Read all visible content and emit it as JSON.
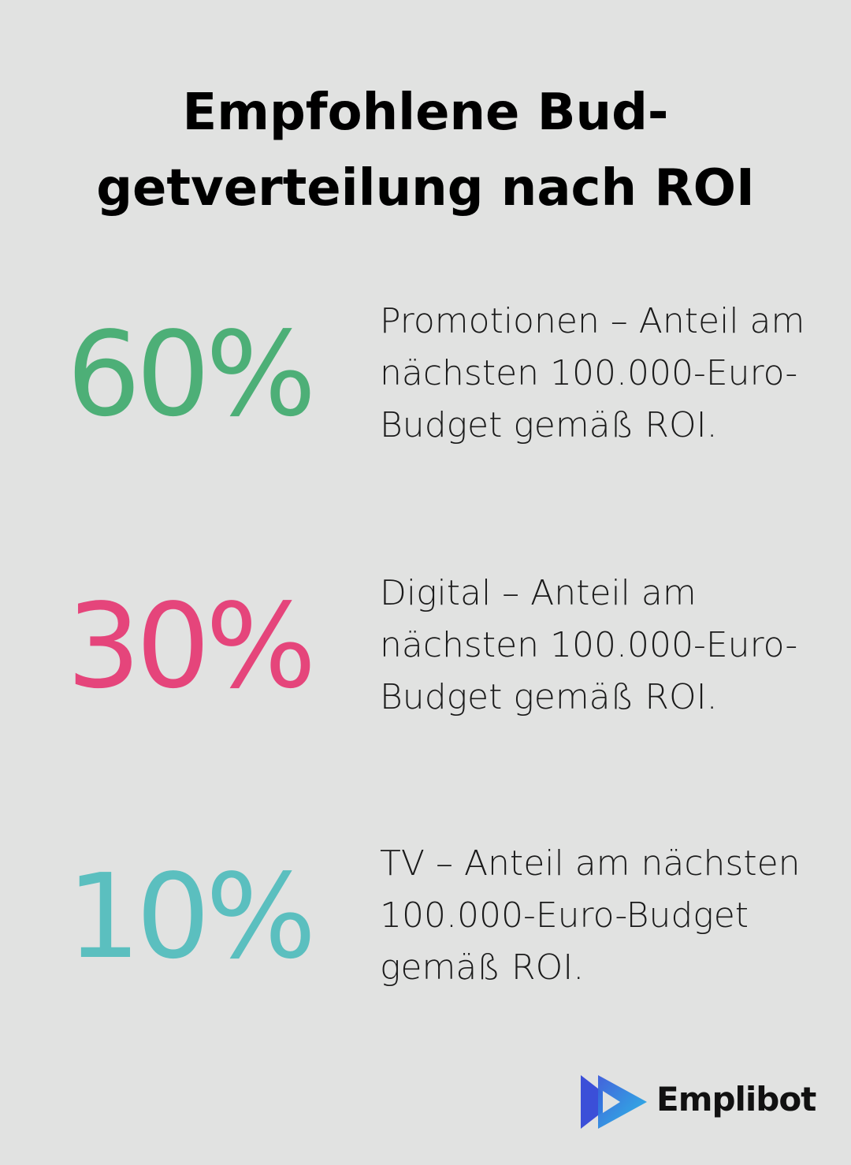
{
  "header": {
    "title_lines": [
      "Empfohlene Bud-",
      "getverteilung nach ROI"
    ]
  },
  "items": [
    {
      "stat": "60%",
      "color": "#4daf77",
      "description": "Promotionen – Anteil am nächsten 100.000-Euro-Budget gemäß ROI."
    },
    {
      "stat": "30%",
      "color": "#e5457b",
      "description": "Digital – Anteil am nächsten 100.000-Euro-Budget gemäß ROI."
    },
    {
      "stat": "10%",
      "color": "#5bbfbf",
      "description": "TV – Anteil am nächsten 100.000-Euro-Budget gemäß ROI."
    }
  ],
  "footer": {
    "brand": "Emplibot"
  }
}
